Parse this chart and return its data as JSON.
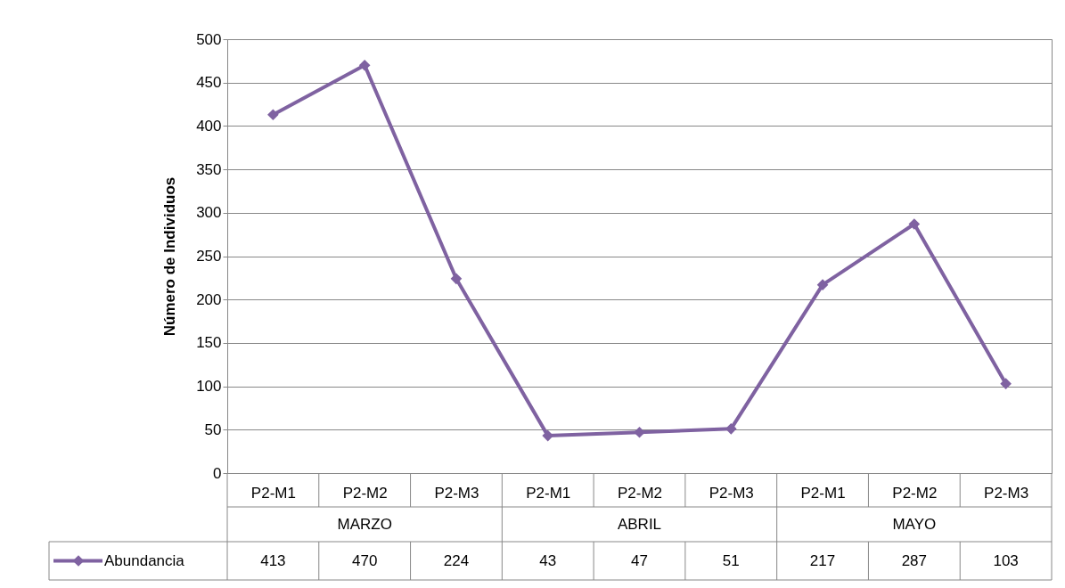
{
  "chart_data": {
    "type": "line",
    "ylabel": "Número de Individuos",
    "categories": [
      "P2-M1",
      "P2-M2",
      "P2-M3",
      "P2-M1",
      "P2-M2",
      "P2-M3",
      "P2-M1",
      "P2-M2",
      "P2-M3"
    ],
    "annotations": [
      "MARZO",
      "ABRIL",
      "MAYO"
    ],
    "series": [
      {
        "name": "Abundancia",
        "color": "#7f62a1",
        "values": [
          413,
          470,
          224,
          43,
          47,
          51,
          217,
          287,
          103
        ]
      }
    ],
    "ylim": [
      0,
      500
    ],
    "yticks": [
      0,
      50,
      100,
      150,
      200,
      250,
      300,
      350,
      400,
      450,
      500
    ],
    "grid": "y",
    "marker": "diamond",
    "line_style": "solid",
    "data_labels": true,
    "legend": "bottom"
  }
}
